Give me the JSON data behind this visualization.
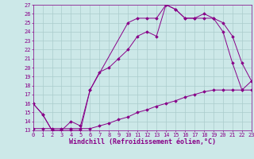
{
  "xlabel": "Windchill (Refroidissement éolien,°C)",
  "bg_color": "#cce8e8",
  "line_color": "#880088",
  "grid_color": "#aacccc",
  "xlim": [
    0,
    23
  ],
  "ylim": [
    13,
    27
  ],
  "xticks": [
    0,
    1,
    2,
    3,
    4,
    5,
    6,
    7,
    8,
    9,
    10,
    11,
    12,
    13,
    14,
    15,
    16,
    17,
    18,
    19,
    20,
    21,
    22,
    23
  ],
  "yticks": [
    13,
    14,
    15,
    16,
    17,
    18,
    19,
    20,
    21,
    22,
    23,
    24,
    25,
    26,
    27
  ],
  "series": [
    {
      "x": [
        0,
        1,
        2,
        3,
        4,
        5,
        6,
        10,
        11,
        12,
        13,
        14,
        15,
        16,
        17,
        18,
        19,
        20,
        21,
        22,
        23
      ],
      "y": [
        16.0,
        14.8,
        13.0,
        13.0,
        13.0,
        13.0,
        17.5,
        25.0,
        25.5,
        25.5,
        25.5,
        27.0,
        26.5,
        25.5,
        25.5,
        25.5,
        25.5,
        25.0,
        23.5,
        20.5,
        18.5
      ]
    },
    {
      "x": [
        0,
        1,
        2,
        3,
        4,
        5,
        6,
        7,
        8,
        9,
        10,
        11,
        12,
        13,
        14,
        15,
        16,
        17,
        18,
        19,
        20,
        21,
        22,
        23
      ],
      "y": [
        16.0,
        14.8,
        13.0,
        13.0,
        14.0,
        13.5,
        17.5,
        19.5,
        20.0,
        21.0,
        22.0,
        23.5,
        24.0,
        23.5,
        27.0,
        26.5,
        25.5,
        25.5,
        26.0,
        25.5,
        24.0,
        20.5,
        17.5,
        18.5
      ]
    },
    {
      "x": [
        0,
        1,
        2,
        3,
        4,
        5,
        6,
        7,
        8,
        9,
        10,
        11,
        12,
        13,
        14,
        15,
        16,
        17,
        18,
        19,
        20,
        21,
        22,
        23
      ],
      "y": [
        13.2,
        13.2,
        13.2,
        13.2,
        13.2,
        13.2,
        13.2,
        13.5,
        13.8,
        14.2,
        14.5,
        15.0,
        15.3,
        15.7,
        16.0,
        16.3,
        16.7,
        17.0,
        17.3,
        17.5,
        17.5,
        17.5,
        17.5,
        17.5
      ]
    }
  ],
  "xlabel_fontsize": 6,
  "tick_fontsize": 5,
  "marker": "D",
  "marker_size": 1.8,
  "linewidth": 0.7
}
